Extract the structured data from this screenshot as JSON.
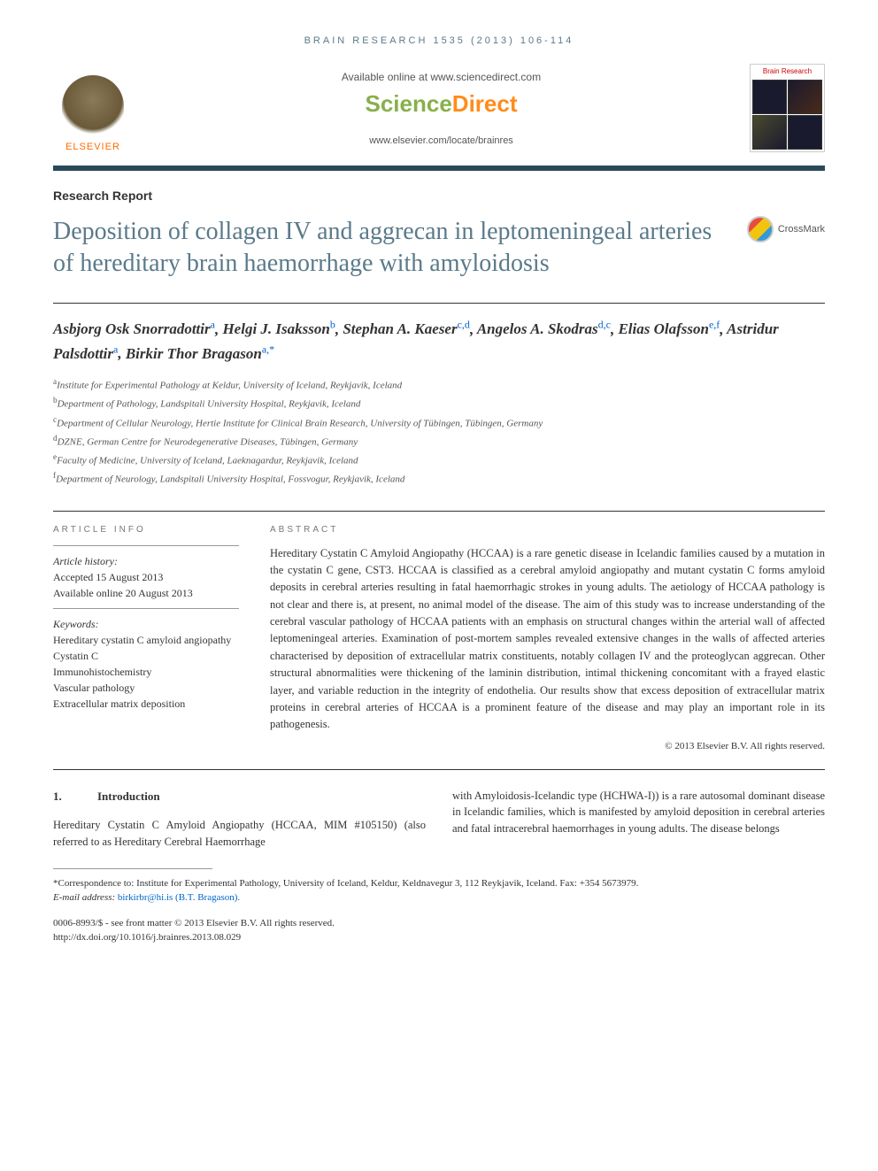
{
  "journal_header": "BRAIN RESEARCH 1535 (2013) 106-114",
  "header": {
    "available_text": "Available online at www.sciencedirect.com",
    "sd_science": "Science",
    "sd_direct": "Direct",
    "journal_url": "www.elsevier.com/locate/brainres",
    "elsevier_label": "ELSEVIER",
    "cover_title": "Brain Research",
    "crossmark_label": "CrossMark"
  },
  "article": {
    "type": "Research Report",
    "title": "Deposition of collagen IV and aggrecan in leptomeningeal arteries of hereditary brain haemorrhage with amyloidosis",
    "authors_html": [
      {
        "name": "Asbjorg Osk Snorradottir",
        "aff": "a"
      },
      {
        "name": "Helgi J. Isaksson",
        "aff": "b"
      },
      {
        "name": "Stephan A. Kaeser",
        "aff": "c,d"
      },
      {
        "name": "Angelos A. Skodras",
        "aff": "d,c"
      },
      {
        "name": "Elias Olafsson",
        "aff": "e,f"
      },
      {
        "name": "Astridur Palsdottir",
        "aff": "a"
      },
      {
        "name": "Birkir Thor Bragason",
        "aff": "a,*"
      }
    ],
    "affiliations": [
      {
        "sup": "a",
        "text": "Institute for Experimental Pathology at Keldur, University of Iceland, Reykjavik, Iceland"
      },
      {
        "sup": "b",
        "text": "Department of Pathology, Landspitali University Hospital, Reykjavik, Iceland"
      },
      {
        "sup": "c",
        "text": "Department of Cellular Neurology, Hertie Institute for Clinical Brain Research, University of Tübingen, Tübingen, Germany"
      },
      {
        "sup": "d",
        "text": "DZNE, German Centre for Neurodegenerative Diseases, Tübingen, Germany"
      },
      {
        "sup": "e",
        "text": "Faculty of Medicine, University of Iceland, Laeknagardur, Reykjavik, Iceland"
      },
      {
        "sup": "f",
        "text": "Department of Neurology, Landspitali University Hospital, Fossvogur, Reykjavik, Iceland"
      }
    ]
  },
  "info": {
    "header": "article info",
    "history_label": "Article history:",
    "accepted": "Accepted 15 August 2013",
    "online": "Available online 20 August 2013",
    "keywords_label": "Keywords:",
    "keywords": [
      "Hereditary cystatin C amyloid angiopathy",
      "Cystatin C",
      "Immunohistochemistry",
      "Vascular pathology",
      "Extracellular matrix deposition"
    ]
  },
  "abstract": {
    "header": "abstract",
    "text": "Hereditary Cystatin C Amyloid Angiopathy (HCCAA) is a rare genetic disease in Icelandic families caused by a mutation in the cystatin C gene, CST3. HCCAA is classified as a cerebral amyloid angiopathy and mutant cystatin C forms amyloid deposits in cerebral arteries resulting in fatal haemorrhagic strokes in young adults. The aetiology of HCCAA pathology is not clear and there is, at present, no animal model of the disease. The aim of this study was to increase understanding of the cerebral vascular pathology of HCCAA patients with an emphasis on structural changes within the arterial wall of affected leptomeningeal arteries. Examination of post-mortem samples revealed extensive changes in the walls of affected arteries characterised by deposition of extracellular matrix constituents, notably collagen IV and the proteoglycan aggrecan. Other structural abnormalities were thickening of the laminin distribution, intimal thickening concomitant with a frayed elastic layer, and variable reduction in the integrity of endothelia. Our results show that excess deposition of extracellular matrix proteins in cerebral arteries of HCCAA is a prominent feature of the disease and may play an important role in its pathogenesis.",
    "copyright": "© 2013 Elsevier B.V. All rights reserved."
  },
  "intro": {
    "num": "1.",
    "title": "Introduction",
    "col1": "Hereditary Cystatin C Amyloid Angiopathy (HCCAA, MIM #105150) (also referred to as Hereditary Cerebral Haemorrhage",
    "col2": "with Amyloidosis-Icelandic type (HCHWA-I)) is a rare autosomal dominant disease in Icelandic families, which is manifested by amyloid deposition in cerebral arteries and fatal intracerebral haemorrhages in young adults. The disease belongs"
  },
  "footnotes": {
    "correspondence": "*Correspondence to: Institute for Experimental Pathology, University of Iceland, Keldur, Keldnavegur 3, 112 Reykjavik, Iceland. Fax: +354 5673979.",
    "email_label": "E-mail address:",
    "email": "birkirbr@hi.is (B.T. Bragason).",
    "issn": "0006-8993/$ - see front matter © 2013 Elsevier B.V. All rights reserved.",
    "doi": "http://dx.doi.org/10.1016/j.brainres.2013.08.029"
  },
  "colors": {
    "header_teal": "#5a7a8a",
    "link_blue": "#0066cc",
    "elsevier_orange": "#ff6b00"
  }
}
